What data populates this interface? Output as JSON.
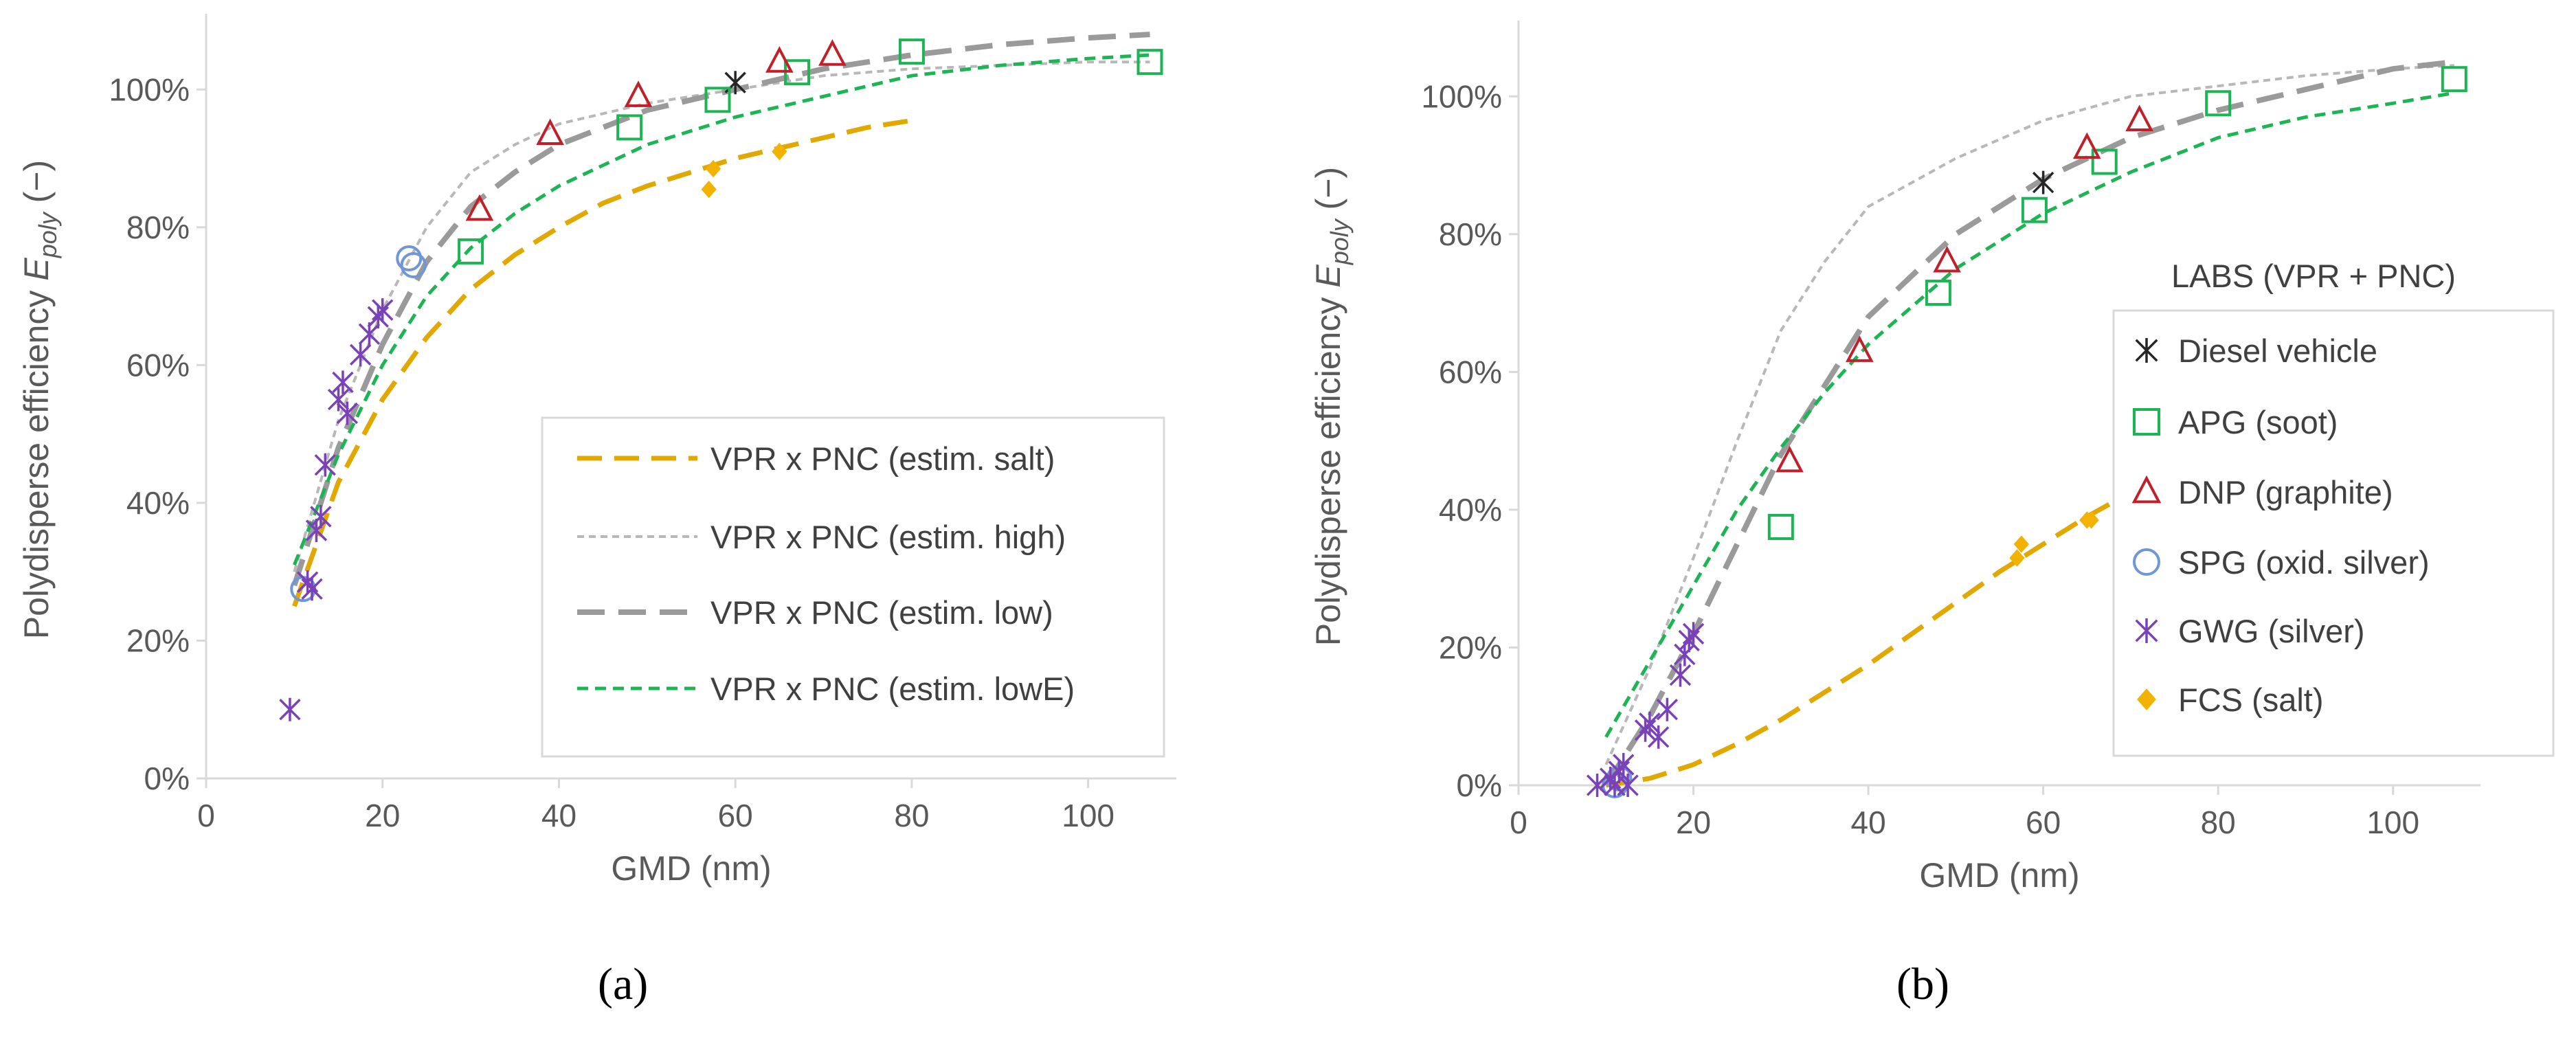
{
  "colors": {
    "salt": "#E0A800",
    "high": "#B8B8B8",
    "low": "#9A9A9A",
    "lowE": "#1DB553",
    "diesel": "#262626",
    "apg": "#1DB553",
    "dnp": "#C0202A",
    "spg": "#6F97D8",
    "gwg": "#7A42B8",
    "fcs": "#F2B200",
    "axis": "#D9D9D9",
    "text": "#595959"
  },
  "captions": {
    "a": "(a)",
    "b": "(b)"
  },
  "chart_data": [
    {
      "id": "a",
      "type": "scatter",
      "xlabel": "GMD (nm)",
      "ylabel_prefix": "Polydisperse efficiency ",
      "ylabel_var": "E",
      "ylabel_sub": "poly",
      "ylabel_suffix": " (−)",
      "xlim": [
        0,
        110
      ],
      "ylim": [
        0,
        1.1
      ],
      "xticks": [
        0,
        20,
        40,
        60,
        80,
        100
      ],
      "yticks": [
        0,
        0.2,
        0.4,
        0.6,
        0.8,
        1.0
      ],
      "ytick_labels": [
        "0%",
        "20%",
        "40%",
        "60%",
        "80%",
        "100%"
      ],
      "grid": false,
      "legend_position": "bottom-right",
      "legend_title": "",
      "lines": [
        {
          "name": "VPR x PNC (estim. salt)",
          "style": "salt",
          "x": [
            10,
            15,
            20,
            25,
            30,
            35,
            40,
            45,
            50,
            55,
            60,
            65,
            70,
            75,
            80
          ],
          "y": [
            0.25,
            0.43,
            0.55,
            0.64,
            0.71,
            0.76,
            0.8,
            0.835,
            0.86,
            0.88,
            0.9,
            0.915,
            0.93,
            0.945,
            0.955
          ]
        },
        {
          "name": "VPR x PNC (estim. high)",
          "style": "high",
          "x": [
            10,
            15,
            20,
            25,
            30,
            35,
            40,
            50,
            60,
            70,
            80,
            90,
            100,
            107
          ],
          "y": [
            0.3,
            0.52,
            0.68,
            0.8,
            0.88,
            0.92,
            0.95,
            0.98,
            1.0,
            1.02,
            1.03,
            1.035,
            1.04,
            1.04
          ]
        },
        {
          "name": "VPR x PNC (estim. low)",
          "style": "low",
          "x": [
            10,
            15,
            20,
            25,
            30,
            35,
            40,
            50,
            60,
            70,
            80,
            90,
            100,
            107
          ],
          "y": [
            0.28,
            0.48,
            0.63,
            0.75,
            0.83,
            0.88,
            0.92,
            0.97,
            1.0,
            1.03,
            1.05,
            1.065,
            1.075,
            1.08
          ]
        },
        {
          "name": "VPR x PNC (estim. lowE)",
          "style": "lowE",
          "x": [
            10,
            15,
            20,
            25,
            30,
            35,
            40,
            50,
            60,
            70,
            80,
            90,
            100,
            107
          ],
          "y": [
            0.31,
            0.47,
            0.6,
            0.7,
            0.77,
            0.82,
            0.86,
            0.92,
            0.96,
            0.99,
            1.02,
            1.035,
            1.045,
            1.05
          ]
        }
      ],
      "points": [
        {
          "group": "diesel",
          "x": [
            60
          ],
          "y": [
            1.01
          ]
        },
        {
          "group": "apg",
          "x": [
            30,
            48,
            58,
            67,
            80,
            107
          ],
          "y": [
            0.765,
            0.945,
            0.985,
            1.025,
            1.055,
            1.04
          ]
        },
        {
          "group": "dnp",
          "x": [
            31,
            39,
            49,
            65,
            71
          ],
          "y": [
            0.825,
            0.935,
            0.99,
            1.04,
            1.05
          ]
        },
        {
          "group": "spg",
          "x": [
            11,
            23,
            23.5
          ],
          "y": [
            0.275,
            0.755,
            0.745
          ]
        },
        {
          "group": "gwg",
          "x": [
            9.5,
            11.5,
            12,
            12.5,
            13,
            13.5,
            15,
            15.5,
            16,
            17.5,
            18.5,
            19.5,
            20
          ],
          "y": [
            0.1,
            0.285,
            0.275,
            0.36,
            0.38,
            0.455,
            0.55,
            0.575,
            0.53,
            0.615,
            0.645,
            0.67,
            0.68
          ]
        },
        {
          "group": "fcs",
          "x": [
            57,
            57.5,
            65
          ],
          "y": [
            0.855,
            0.885,
            0.91
          ]
        }
      ]
    },
    {
      "id": "b",
      "type": "scatter",
      "xlabel": "GMD (nm)",
      "ylabel_prefix": "Polydisperse efficiency ",
      "ylabel_var": "E",
      "ylabel_sub": "poly",
      "ylabel_suffix": " (−)",
      "xlim": [
        0,
        110
      ],
      "ylim": [
        0,
        1.1
      ],
      "xticks": [
        0,
        20,
        40,
        60,
        80,
        100
      ],
      "yticks": [
        0,
        0.2,
        0.4,
        0.6,
        0.8,
        1.0
      ],
      "ytick_labels": [
        "0%",
        "20%",
        "40%",
        "60%",
        "80%",
        "100%"
      ],
      "grid": false,
      "legend_position": "right",
      "legend_title": "LABS (VPR + PNC)",
      "lines": [
        {
          "style": "salt",
          "x": [
            10,
            15,
            20,
            25,
            30,
            35,
            40,
            45,
            50,
            55,
            60,
            65,
            70
          ],
          "y": [
            0.0,
            0.01,
            0.03,
            0.06,
            0.095,
            0.135,
            0.175,
            0.22,
            0.265,
            0.31,
            0.35,
            0.39,
            0.425
          ]
        },
        {
          "style": "high",
          "x": [
            10,
            15,
            20,
            25,
            30,
            35,
            40,
            50,
            60,
            70,
            80,
            90,
            100,
            107
          ],
          "y": [
            0.03,
            0.17,
            0.33,
            0.5,
            0.66,
            0.76,
            0.84,
            0.91,
            0.965,
            1.0,
            1.015,
            1.03,
            1.04,
            1.045
          ]
        },
        {
          "style": "low",
          "x": [
            10,
            15,
            20,
            25,
            30,
            35,
            40,
            50,
            60,
            70,
            80,
            90,
            100,
            107
          ],
          "y": [
            0.0,
            0.1,
            0.22,
            0.35,
            0.48,
            0.58,
            0.68,
            0.8,
            0.88,
            0.94,
            0.98,
            1.01,
            1.04,
            1.05
          ]
        },
        {
          "style": "lowE",
          "x": [
            10,
            15,
            20,
            25,
            30,
            35,
            40,
            50,
            60,
            70,
            80,
            90,
            100,
            107
          ],
          "y": [
            0.07,
            0.18,
            0.29,
            0.4,
            0.49,
            0.57,
            0.64,
            0.75,
            0.83,
            0.89,
            0.94,
            0.97,
            0.99,
            1.005
          ]
        }
      ],
      "legend_entries": [
        {
          "group": "diesel",
          "name": "Diesel vehicle"
        },
        {
          "group": "apg",
          "name": "APG (soot)"
        },
        {
          "group": "dnp",
          "name": "DNP (graphite)"
        },
        {
          "group": "spg",
          "name": "SPG (oxid. silver)"
        },
        {
          "group": "gwg",
          "name": "GWG (silver)"
        },
        {
          "group": "fcs",
          "name": "FCS (salt)"
        }
      ],
      "points": [
        {
          "group": "diesel",
          "x": [
            60
          ],
          "y": [
            0.875
          ]
        },
        {
          "group": "apg",
          "x": [
            30,
            48,
            59,
            67,
            80,
            107
          ],
          "y": [
            0.375,
            0.715,
            0.835,
            0.905,
            0.99,
            1.025
          ]
        },
        {
          "group": "dnp",
          "x": [
            31,
            39,
            49,
            65,
            71
          ],
          "y": [
            0.47,
            0.63,
            0.76,
            0.925,
            0.965
          ]
        },
        {
          "group": "spg",
          "x": [
            11,
            11.5
          ],
          "y": [
            0.0,
            0.01
          ]
        },
        {
          "group": "gwg",
          "x": [
            9,
            10.5,
            11,
            11.5,
            12,
            12.5,
            14.5,
            15,
            16,
            17,
            18.5,
            19,
            19.5,
            20
          ],
          "y": [
            0.0,
            0.01,
            0.0,
            0.02,
            0.03,
            0.0,
            0.08,
            0.09,
            0.07,
            0.11,
            0.16,
            0.19,
            0.21,
            0.22
          ]
        },
        {
          "group": "fcs",
          "x": [
            57,
            57.5,
            65,
            65.5
          ],
          "y": [
            0.33,
            0.35,
            0.385,
            0.385
          ]
        }
      ]
    }
  ]
}
